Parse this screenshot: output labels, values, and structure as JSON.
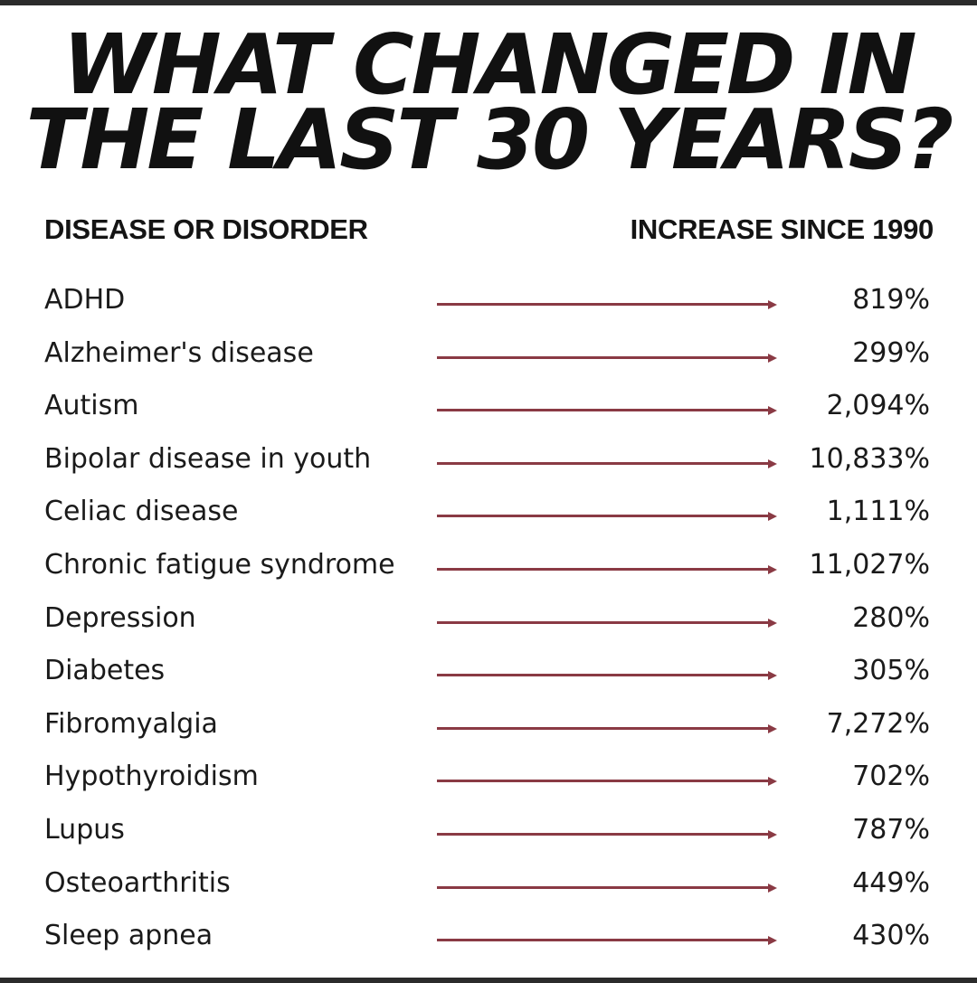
{
  "title": {
    "line1": "WHAT CHANGED IN",
    "line2": "THE LAST 30 YEARS?"
  },
  "columns": {
    "left": "DISEASE OR DISORDER",
    "right": "INCREASE SINCE 1990"
  },
  "arrow_color": "#8a3a44",
  "rows": [
    {
      "name": "ADHD",
      "value": "819%"
    },
    {
      "name": "Alzheimer's disease",
      "value": "299%"
    },
    {
      "name": "Autism",
      "value": "2,094%"
    },
    {
      "name": "Bipolar disease in youth",
      "value": "10,833%"
    },
    {
      "name": "Celiac disease",
      "value": "1,111%"
    },
    {
      "name": "Chronic fatigue syndrome",
      "value": "11,027%"
    },
    {
      "name": "Depression",
      "value": "280%"
    },
    {
      "name": "Diabetes",
      "value": "305%"
    },
    {
      "name": "Fibromyalgia",
      "value": "7,272%"
    },
    {
      "name": "Hypothyroidism",
      "value": "702%"
    },
    {
      "name": "Lupus",
      "value": "787%"
    },
    {
      "name": "Osteoarthritis",
      "value": "449%"
    },
    {
      "name": "Sleep apnea",
      "value": "430%"
    }
  ]
}
